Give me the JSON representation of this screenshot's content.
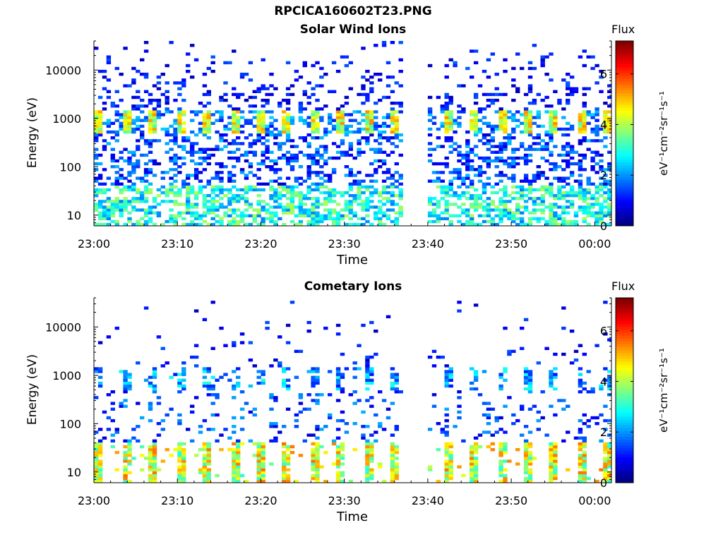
{
  "figure": {
    "title": "RPCICA160602T23.PNG"
  },
  "panels": [
    {
      "title": "Solar Wind Ions",
      "xlabel": "Time",
      "ylabel": "Energy (eV)",
      "colorbar_title": "Flux",
      "colorbar_label": "eV⁻¹cm⁻²sr⁻¹s⁻¹"
    },
    {
      "title": "Cometary Ions",
      "xlabel": "Time",
      "ylabel": "Energy (eV)",
      "colorbar_title": "Flux",
      "colorbar_label": "eV⁻¹cm⁻²sr⁻¹s⁻¹"
    }
  ],
  "chart_data": [
    {
      "type": "heatmap",
      "title": "Solar Wind Ions",
      "xlabel": "Time",
      "ylabel": "Energy (eV)",
      "x_range": [
        "23:00",
        "00:02"
      ],
      "x_tick_labels": [
        "23:00",
        "23:10",
        "23:20",
        "23:30",
        "23:40",
        "23:50",
        "00:00"
      ],
      "y_scale": "log",
      "y_range_eV": [
        6,
        40000
      ],
      "y_tick_labels": [
        "10",
        "100",
        "1000",
        "10000"
      ],
      "colorbar": {
        "title": "Flux",
        "label": "eV⁻¹cm⁻²sr⁻¹s⁻¹",
        "range": [
          0,
          7.3
        ],
        "tick_labels": [
          "0",
          "2",
          "4",
          "6"
        ],
        "colormap": "jet"
      },
      "data_gap": [
        "23:37",
        "23:40"
      ],
      "features": [
        {
          "energy_eV": [
            500,
            1500
          ],
          "flux": [
            3,
            5
          ],
          "note": "solar wind peak, repeating every ~3 min"
        },
        {
          "energy_eV": [
            6,
            40
          ],
          "flux": [
            2,
            4
          ]
        },
        {
          "energy_eV": [
            50,
            40000
          ],
          "flux": [
            0.5,
            2
          ]
        }
      ]
    },
    {
      "type": "heatmap",
      "title": "Cometary Ions",
      "xlabel": "Time",
      "ylabel": "Energy (eV)",
      "x_range": [
        "23:00",
        "00:02"
      ],
      "x_tick_labels": [
        "23:00",
        "23:10",
        "23:20",
        "23:30",
        "23:40",
        "23:50",
        "00:00"
      ],
      "y_scale": "log",
      "y_range_eV": [
        6,
        40000
      ],
      "y_tick_labels": [
        "10",
        "100",
        "1000",
        "10000"
      ],
      "colorbar": {
        "title": "Flux",
        "label": "eV⁻¹cm⁻²sr⁻¹s⁻¹",
        "range": [
          0,
          7.3
        ],
        "tick_labels": [
          "0",
          "2",
          "4",
          "6"
        ],
        "colormap": "jet"
      },
      "data_gap": [
        "23:37",
        "23:40"
      ],
      "features": [
        {
          "energy_eV": [
            6,
            40
          ],
          "flux": [
            3,
            5.5
          ],
          "note": "low-energy cometary ions, repeating every ~3 min"
        },
        {
          "energy_eV": [
            500,
            1500
          ],
          "flux": [
            1,
            3
          ]
        },
        {
          "energy_eV": [
            40,
            12000
          ],
          "flux": [
            0.5,
            2
          ]
        }
      ]
    }
  ]
}
